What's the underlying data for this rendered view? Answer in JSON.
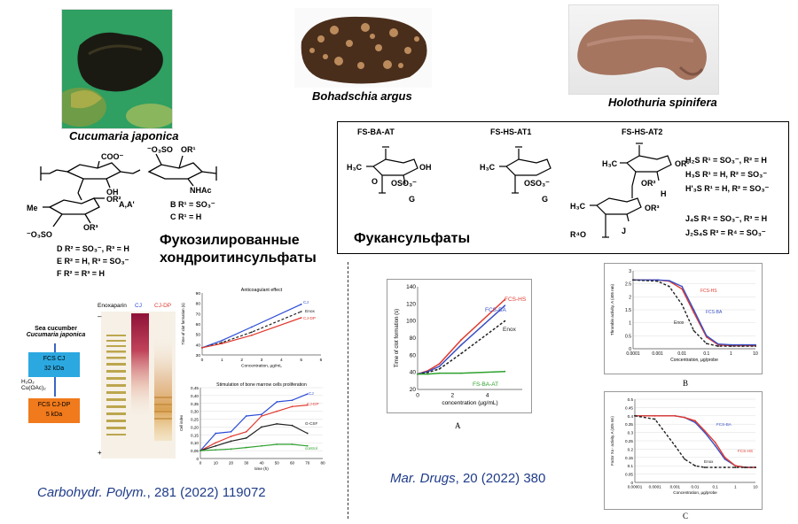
{
  "species": {
    "cj": "Cucumaria japonica",
    "ba": "Bohadschia argus",
    "hs": "Holothuria spinifera"
  },
  "fcs_panel": {
    "title_line1": "Фукозилированные",
    "title_line2": "хондроитинсульфаты",
    "labels": {
      "coo": "COO⁻",
      "oso3_top": "⁻O₃SO",
      "or1": "OR¹",
      "oh": "OH",
      "aa": "A,A'",
      "nhac": "NHAc",
      "b": "B R¹ = SO₃⁻",
      "c": "C R¹ = H",
      "me": "Me",
      "or2": "OR²",
      "or3": "OR³",
      "oso3_left": "⁻O₃SO",
      "d": "D R² = SO₃⁻, R³ = H",
      "e": "E R² = H, R³ = SO₃⁻",
      "f": "F R² = R³ = H"
    }
  },
  "fs_panel": {
    "title": "Фукансульфаты",
    "headers": [
      "FS-BA-AT",
      "FS-HS-AT1",
      "FS-HS-AT2"
    ],
    "labels": {
      "h3c": "H₃C",
      "oh": "OH",
      "oso3": "OSO₃⁻",
      "g": "G",
      "o": "O",
      "or1": "OR¹",
      "or2": "OR²",
      "h": "H",
      "or3": "OR³",
      "r4o": "R⁴O",
      "j": "J",
      "h2s": "H₂S  R¹ = SO₃⁻, R² = H",
      "h3s": "H₃S  R¹ = H, R² = SO₃⁻",
      "hp3s": "H'₃S  R¹ = H, R² = SO₃⁻",
      "j4s": "J₄S  R⁴ = SO₃⁻, R³ = H",
      "j2s4s": "J₂S₄S  R³ = R⁴ = SO₃⁻"
    }
  },
  "left_figure": {
    "flow": {
      "source_line1": "Sea cucumber",
      "source_line2": "Cucumaria japonica",
      "box1_line1": "FCS CJ",
      "box1_line2": "32 kDa",
      "reagent_line1": "H₂O₂",
      "reagent_line2": "Cu(OAc)₂",
      "box2_line1": "FCS CJ-DP",
      "box2_line2": "5 kDa"
    },
    "gel": {
      "lanes": [
        "Enoxaparin",
        "CJ",
        "CJ-DP"
      ],
      "minus": "–",
      "plus": "+"
    }
  },
  "charts": [
    {
      "id": "anticoagulant",
      "type": "line",
      "title": "Anticoagulant effect",
      "xlabel": "Concentration, µg/mL",
      "ylabel": "Time of clot formation (s)",
      "xlim": [
        0,
        6
      ],
      "ylim": [
        30,
        90
      ],
      "xticks": [
        "0",
        "1",
        "2",
        "3",
        "4",
        "5",
        "6"
      ],
      "yticks": [
        "30",
        "40",
        "50",
        "60",
        "70",
        "80",
        "90"
      ],
      "x": [
        0,
        1,
        2.5,
        5
      ],
      "series": [
        {
          "name": "CJ",
          "values": [
            37,
            44,
            57,
            79
          ],
          "color": "#2b4bd6",
          "dash": false
        },
        {
          "name": "Enox",
          "values": [
            37,
            42,
            52,
            72
          ],
          "color": "#222222",
          "dash": true
        },
        {
          "name": "CJ-DP",
          "values": [
            37,
            41,
            49,
            66
          ],
          "color": "#e03a2f",
          "dash": false
        }
      ]
    },
    {
      "id": "proliferation",
      "type": "line",
      "title": "Stimulation of bone marrow cells proliferation",
      "xlabel": "time (h)",
      "ylabel": "Cell index",
      "xlim": [
        0,
        80
      ],
      "ylim": [
        0,
        0.45
      ],
      "xticks": [
        "0",
        "10",
        "20",
        "30",
        "40",
        "50",
        "60",
        "70",
        "80"
      ],
      "yticks": [
        "0",
        "0,05",
        "0,10",
        "0,15",
        "0,20",
        "0,25",
        "0,30",
        "0,35",
        "0,40",
        "0,45"
      ],
      "x": [
        0,
        10,
        20,
        30,
        40,
        50,
        60,
        70
      ],
      "series": [
        {
          "name": "CJ",
          "values": [
            0.05,
            0.16,
            0.17,
            0.27,
            0.28,
            0.36,
            0.37,
            0.41
          ],
          "color": "#2b4bd6"
        },
        {
          "name": "CJ-DP",
          "values": [
            0.05,
            0.1,
            0.14,
            0.17,
            0.27,
            0.3,
            0.33,
            0.34
          ],
          "color": "#e03a2f"
        },
        {
          "name": "G-CSF",
          "values": [
            0.05,
            0.08,
            0.11,
            0.13,
            0.2,
            0.22,
            0.21,
            0.16
          ],
          "color": "#222222"
        },
        {
          "name": "control",
          "values": [
            0.05,
            0.055,
            0.06,
            0.07,
            0.08,
            0.09,
            0.09,
            0.08
          ],
          "color": "#2ea12e"
        }
      ]
    },
    {
      "id": "clot",
      "type": "line",
      "title": "",
      "panel_letter": "A",
      "xlabel": "concentration (µg/mL)",
      "ylabel": "Time of clot formation (s)",
      "xlim": [
        0,
        6
      ],
      "ylim": [
        20,
        140
      ],
      "xticks": [
        "0",
        "2",
        "4"
      ],
      "yticks": [
        "20",
        "40",
        "60",
        "80",
        "100",
        "120",
        "140"
      ],
      "x": [
        0,
        0.6,
        1.25,
        2.5,
        5
      ],
      "series": [
        {
          "name": "FCS-HS",
          "values": [
            38,
            42,
            50,
            78,
            125
          ],
          "color": "#e03a2f",
          "dash": false
        },
        {
          "name": "FCS-BA",
          "values": [
            38,
            41,
            47,
            72,
            118
          ],
          "color": "#3a4fc4",
          "dash": false
        },
        {
          "name": "Enox",
          "values": [
            38,
            40,
            44,
            62,
            100
          ],
          "color": "#222222",
          "dash": true
        },
        {
          "name": "FS-BA-AT",
          "values": [
            38,
            38,
            39,
            39,
            41
          ],
          "color": "#2ea12e",
          "dash": false
        }
      ]
    },
    {
      "id": "thrombin",
      "type": "line",
      "title": "",
      "panel_letter": "B",
      "xlabel": "Concentration, µg/probe",
      "ylabel": "Thrombin activity, A (405 nm)",
      "xscale": "log",
      "xlim": [
        0.0001,
        10
      ],
      "ylim": [
        0,
        3
      ],
      "xticks": [
        "0.0001",
        "0.001",
        "0.01",
        "0.1",
        "1",
        "10"
      ],
      "yticks": [
        "0",
        "0.5",
        "1",
        "1.5",
        "2",
        "2.5",
        "3"
      ],
      "x": [
        0.0001,
        0.001,
        0.003,
        0.01,
        0.03,
        0.1,
        0.3,
        1,
        3,
        10
      ],
      "series": [
        {
          "name": "FCS-HS",
          "values": [
            2.65,
            2.65,
            2.6,
            2.3,
            1.4,
            0.45,
            0.15,
            0.12,
            0.12,
            0.12
          ],
          "color": "#e03a2f",
          "dash": false
        },
        {
          "name": "FCS-BA",
          "values": [
            2.65,
            2.65,
            2.62,
            2.4,
            1.5,
            0.5,
            0.18,
            0.15,
            0.15,
            0.15
          ],
          "color": "#3a4fc4",
          "dash": false
        },
        {
          "name": "Enox",
          "values": [
            2.65,
            2.6,
            2.4,
            1.7,
            0.7,
            0.2,
            0.1,
            0.1,
            0.1,
            0.1
          ],
          "color": "#222222",
          "dash": true
        }
      ]
    },
    {
      "id": "factorxa",
      "type": "line",
      "title": "",
      "panel_letter": "C",
      "xlabel": "Concentration, µg/probe",
      "ylabel": "Factor Xa - activity, A (405 nm)",
      "xscale": "log",
      "xlim": [
        1e-05,
        10
      ],
      "ylim": [
        0,
        0.5
      ],
      "xticks": [
        "0.00001",
        "0.0001",
        "0.001",
        "0.01",
        "0.1",
        "1",
        "10"
      ],
      "yticks": [
        "0",
        "0.05",
        "0.1",
        "0.15",
        "0.2",
        "0.25",
        "0.3",
        "0.35",
        "0.4",
        "0.45",
        "0.5"
      ],
      "x": [
        1e-05,
        0.0001,
        0.001,
        0.003,
        0.01,
        0.03,
        0.1,
        0.3,
        1,
        3,
        10
      ],
      "series": [
        {
          "name": "FCS-BA",
          "values": [
            0.4,
            0.4,
            0.4,
            0.39,
            0.36,
            0.3,
            0.22,
            0.14,
            0.1,
            0.09,
            0.09
          ],
          "color": "#3a4fc4",
          "dash": false
        },
        {
          "name": "FCS-HS",
          "values": [
            0.4,
            0.4,
            0.4,
            0.39,
            0.37,
            0.31,
            0.24,
            0.15,
            0.1,
            0.09,
            0.09
          ],
          "color": "#e03a2f",
          "dash": false
        },
        {
          "name": "Enox",
          "values": [
            0.4,
            0.38,
            0.22,
            0.14,
            0.1,
            0.09,
            0.09,
            0.09,
            0.09,
            0.09,
            0.09
          ],
          "color": "#222222",
          "dash": true
        }
      ]
    }
  ],
  "references": {
    "left_journal": "Carbohydr. Polym.",
    "left_cite": ", 281 (2022) 119072",
    "right_journal": "Mar. Drugs",
    "right_cite": ", 20 (2022) 380"
  }
}
